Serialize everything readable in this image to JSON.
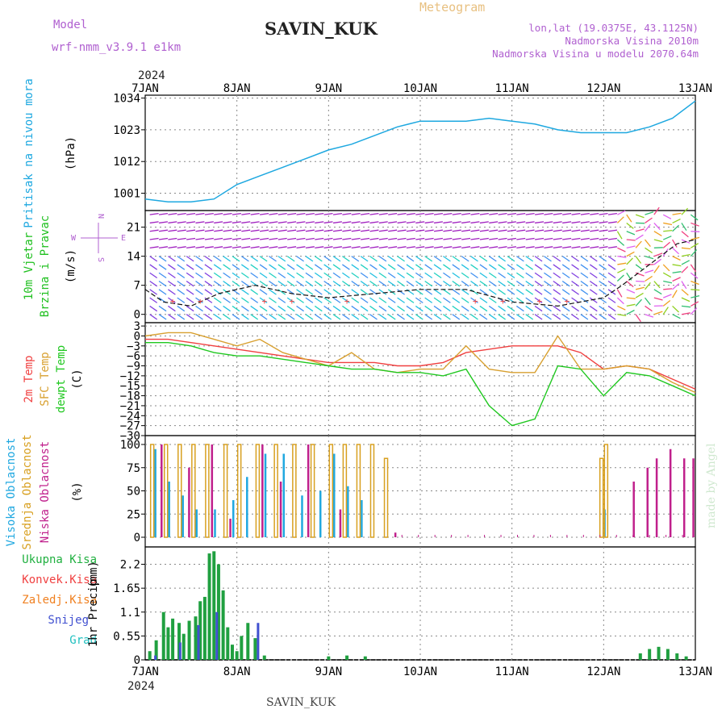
{
  "header": {
    "model_label": "Model",
    "model_value": "wrf-nmm_v3.9.1  e1km",
    "station": "SAVIN_KUK",
    "meteogram": "Meteogram",
    "lonlat": "lon,lat (19.0375E, 43.1125N)",
    "elevation": "Nadmorska Visina 2010m",
    "model_elevation": "Nadmorska Visina u modelu 2070.64m",
    "year": "2024",
    "footer_station": "SAVIN_KUK",
    "watermark": "made by Angel"
  },
  "colors": {
    "pressure": "#1ea8e0",
    "temp2m": "#f04040",
    "sfc": "#d8a030",
    "dewpt": "#20c820",
    "high_cloud": "#20a8e0",
    "mid_cloud": "#d8a020",
    "low_cloud": "#c0208c",
    "total_precip": "#20a040",
    "conv_precip": "#f04040",
    "snow": "#4050d0",
    "wind_purple": "#a020c0"
  },
  "chart_data": [
    {
      "type": "line",
      "name": "pressure",
      "ylabel": "Pritisak na nivou mora",
      "unit": "(hPa)",
      "x_ticks": [
        "7JAN",
        "8JAN",
        "9JAN",
        "10JAN",
        "11JAN",
        "12JAN",
        "13JAN"
      ],
      "yticks": [
        1001,
        1012,
        1023,
        1034
      ],
      "ylim": [
        995,
        1035
      ],
      "x": [
        0,
        0.25,
        0.5,
        0.75,
        1.0,
        1.25,
        1.5,
        1.75,
        2.0,
        2.25,
        2.5,
        2.75,
        3.0,
        3.25,
        3.5,
        3.75,
        4.0,
        4.25,
        4.5,
        4.75,
        5.0,
        5.25,
        5.5,
        5.75,
        6.0
      ],
      "values": [
        999,
        998,
        998,
        999,
        1004,
        1007,
        1010,
        1013,
        1016,
        1018,
        1021,
        1024,
        1026,
        1026,
        1026,
        1027,
        1026,
        1025,
        1023,
        1022,
        1022,
        1022,
        1024,
        1027,
        1033
      ]
    },
    {
      "type": "scatter",
      "name": "wind",
      "ylabel_lines": [
        "10m Vjetar",
        "Brzina i Pravac"
      ],
      "unit": "(m/s)",
      "yticks": [
        0,
        7,
        14,
        21
      ],
      "ylim": [
        -2,
        25
      ],
      "compass": {
        "n": "N",
        "w": "W",
        "e": "E",
        "s": "S"
      },
      "levels": [
        24,
        22,
        20,
        18,
        16,
        14,
        12,
        10,
        8,
        6,
        4,
        2,
        0
      ],
      "speed_x": [
        0,
        0.2,
        0.5,
        0.8,
        1.2,
        1.6,
        2.0,
        2.5,
        3.0,
        3.5,
        4.0,
        4.5,
        5.0,
        5.2,
        5.5,
        5.8,
        6.0
      ],
      "speed_values": [
        6,
        3,
        2,
        5,
        7,
        5,
        4,
        5,
        6,
        6,
        3,
        2,
        4,
        7,
        12,
        17,
        18
      ]
    },
    {
      "type": "line",
      "name": "temperature",
      "ylabel_lines": [
        "2m Temp",
        "SFC Temp",
        "dewpt Temp"
      ],
      "unit": "(C)",
      "yticks": [
        3,
        0,
        -3,
        -6,
        -9,
        -12,
        -15,
        -18,
        -21,
        -24,
        -27,
        -30
      ],
      "ylim": [
        -30,
        4
      ],
      "series": [
        {
          "name": "2m Temp",
          "x": [
            0,
            0.25,
            0.5,
            0.75,
            1.0,
            1.25,
            1.5,
            1.75,
            2.0,
            2.25,
            2.5,
            2.75,
            3.0,
            3.25,
            3.5,
            3.75,
            4.0,
            4.25,
            4.5,
            4.75,
            5.0,
            5.25,
            5.5,
            5.75,
            6.0
          ],
          "values": [
            -1,
            -1,
            -2,
            -3,
            -4,
            -5,
            -6,
            -7,
            -8,
            -8,
            -8,
            -9,
            -9,
            -8,
            -5,
            -4,
            -3,
            -3,
            -3,
            -5,
            -10,
            -9,
            -10,
            -13,
            -16
          ]
        },
        {
          "name": "SFC Temp",
          "x": [
            0,
            0.25,
            0.5,
            0.75,
            1.0,
            1.25,
            1.5,
            1.75,
            2.0,
            2.25,
            2.5,
            2.75,
            3.0,
            3.25,
            3.5,
            3.75,
            4.0,
            4.25,
            4.5,
            4.75,
            5.0,
            5.25,
            5.5,
            5.75,
            6.0
          ],
          "values": [
            0,
            1,
            1,
            -1,
            -3,
            -1,
            -5,
            -7,
            -9,
            -5,
            -10,
            -11,
            -10,
            -10,
            -3,
            -10,
            -11,
            -11,
            0,
            -10,
            -10,
            -9,
            -10,
            -14,
            -17
          ]
        },
        {
          "name": "dewpt Temp",
          "x": [
            0,
            0.25,
            0.5,
            0.75,
            1.0,
            1.25,
            1.5,
            1.75,
            2.0,
            2.25,
            2.5,
            2.75,
            3.0,
            3.25,
            3.5,
            3.75,
            4.0,
            4.25,
            4.5,
            4.75,
            5.0,
            5.25,
            5.5,
            5.75,
            6.0
          ],
          "values": [
            -2,
            -2,
            -3,
            -5,
            -6,
            -6,
            -7,
            -8,
            -9,
            -10,
            -10,
            -11,
            -11,
            -12,
            -10,
            -21,
            -27,
            -25,
            -9,
            -10,
            -18,
            -11,
            -12,
            -15,
            -18
          ]
        }
      ]
    },
    {
      "type": "bar",
      "name": "cloudiness",
      "ylabel_lines": [
        "Visoka Oblacnost",
        "Srednja Oblacnost",
        "Niska Oblacnost"
      ],
      "unit": "(%)",
      "yticks": [
        0,
        25,
        50,
        75,
        100
      ],
      "ylim": [
        0,
        100
      ],
      "series": [
        {
          "name": "Visoka Oblacnost",
          "x": [
            0.1,
            0.25,
            0.4,
            0.55,
            0.75,
            0.95,
            1.1,
            1.3,
            1.5,
            1.7,
            1.9,
            2.05,
            2.2,
            2.35,
            5.0
          ],
          "values": [
            95,
            60,
            45,
            30,
            30,
            40,
            65,
            90,
            90,
            45,
            50,
            90,
            55,
            40,
            30
          ]
        },
        {
          "name": "Srednja Oblacnost",
          "x": [
            0.05,
            0.2,
            0.35,
            0.5,
            0.65,
            0.85,
            1.0,
            1.2,
            1.4,
            1.6,
            1.8,
            2.0,
            2.15,
            2.3,
            2.45,
            2.6,
            4.95,
            5.0
          ],
          "values": [
            100,
            100,
            100,
            100,
            100,
            100,
            100,
            100,
            100,
            100,
            100,
            100,
            100,
            100,
            100,
            85,
            85,
            100
          ]
        },
        {
          "name": "Niska Oblacnost",
          "x": [
            0.15,
            0.45,
            0.7,
            0.9,
            1.25,
            1.45,
            1.75,
            2.1,
            2.7,
            5.3,
            5.45,
            5.55,
            5.7,
            5.85,
            5.95
          ],
          "values": [
            100,
            75,
            100,
            20,
            100,
            60,
            100,
            30,
            5,
            60,
            75,
            85,
            95,
            85,
            85
          ]
        }
      ]
    },
    {
      "type": "bar",
      "name": "precipitation",
      "legend": [
        "Ukupna Kisa",
        "Konvek.Kisa",
        "Zaledj.Kisa",
        "Snijeg",
        "Grad"
      ],
      "legend_colors": [
        "#20b040",
        "#f04040",
        "#f08020",
        "#4050d0",
        "#20c0c0"
      ],
      "ylabel": "1hr Precip",
      "unit": "(mm)",
      "yticks": [
        0,
        0.55,
        1.1,
        1.65,
        2.2
      ],
      "ylim": [
        0,
        2.6
      ],
      "x_ticks_bottom": [
        "7JAN",
        "8JAN",
        "9JAN",
        "10JAN",
        "11JAN",
        "12JAN",
        "13JAN"
      ],
      "series": [
        {
          "name": "Ukupna Kisa",
          "x": [
            0.05,
            0.12,
            0.2,
            0.25,
            0.3,
            0.37,
            0.42,
            0.48,
            0.55,
            0.6,
            0.65,
            0.7,
            0.75,
            0.8,
            0.85,
            0.9,
            0.95,
            1.0,
            1.05,
            1.12,
            1.2,
            1.3,
            2.0,
            2.2,
            2.4,
            5.4,
            5.5,
            5.6,
            5.7,
            5.8,
            5.9
          ],
          "values": [
            0.2,
            0.45,
            1.1,
            0.75,
            0.95,
            0.85,
            0.6,
            0.9,
            1.0,
            1.35,
            1.45,
            2.45,
            2.5,
            2.2,
            1.6,
            0.75,
            0.35,
            0.2,
            0.55,
            0.85,
            0.5,
            0.1,
            0.08,
            0.1,
            0.08,
            0.15,
            0.25,
            0.3,
            0.25,
            0.15,
            0.08
          ]
        },
        {
          "name": "Snijeg",
          "x": [
            0.08,
            0.35,
            0.55,
            0.75,
            1.2
          ],
          "values": [
            0.1,
            0.4,
            0.8,
            1.1,
            0.85
          ]
        }
      ]
    }
  ]
}
